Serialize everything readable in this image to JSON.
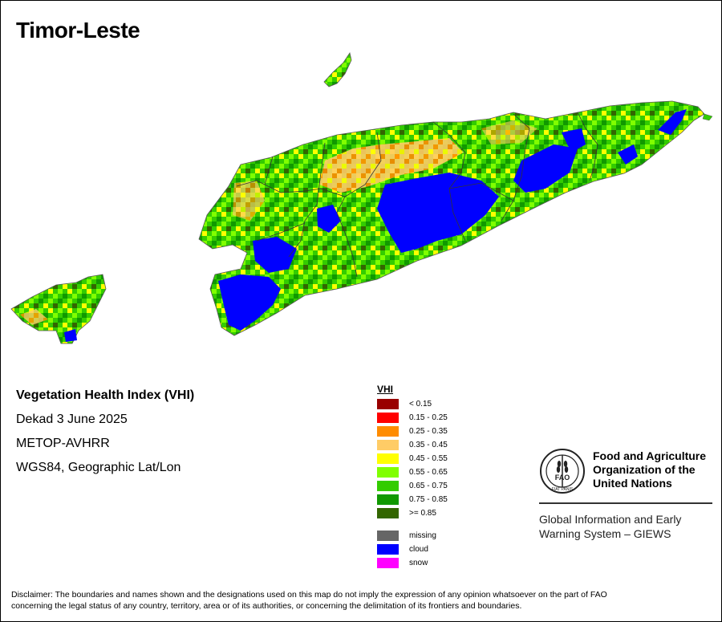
{
  "map": {
    "title": "Timor-Leste",
    "legend_colors": {
      "lt015": "#990000",
      "r015_025": "#ff0000",
      "r025_035": "#ff8c00",
      "r035_045": "#ffcc66",
      "r045_055": "#ffff00",
      "r055_065": "#80ff00",
      "r065_075": "#33cc00",
      "r075_085": "#119900",
      "ge085": "#336600",
      "missing": "#666666",
      "cloud": "#0000ff",
      "snow": "#ff00ff"
    }
  },
  "info": {
    "index_name": "Vegetation Health Index (VHI)",
    "period": "Dekad 3 June 2025",
    "sensor": "METOP-AVHRR",
    "projection": "WGS84, Geographic Lat/Lon"
  },
  "legend": {
    "title": "VHI",
    "classes": [
      {
        "label": "< 0.15",
        "color": "#990000"
      },
      {
        "label": "0.15 - 0.25",
        "color": "#ff0000"
      },
      {
        "label": "0.25 - 0.35",
        "color": "#ff8c00"
      },
      {
        "label": "0.35 - 0.45",
        "color": "#ffcc66"
      },
      {
        "label": "0.45 - 0.55",
        "color": "#ffff00"
      },
      {
        "label": "0.55 - 0.65",
        "color": "#80ff00"
      },
      {
        "label": "0.65 - 0.75",
        "color": "#33cc00"
      },
      {
        "label": "0.75 - 0.85",
        "color": "#119900"
      },
      {
        "label": ">= 0.85",
        "color": "#336600"
      }
    ],
    "other": [
      {
        "label": "missing",
        "color": "#666666"
      },
      {
        "label": "cloud",
        "color": "#0000ff"
      },
      {
        "label": "snow",
        "color": "#ff00ff"
      }
    ]
  },
  "logo": {
    "org_line1": "Food and Agriculture",
    "org_line2": "Organization of the",
    "org_line3": "United Nations",
    "giews_line1": "Global Information and Early",
    "giews_line2": "Warning System – GIEWS",
    "logo_text": "FIAT PANIS",
    "logo_mark": "FAO"
  },
  "disclaimer": {
    "line1": "Disclaimer: The boundaries and names shown and the designations used on this map do not imply the expression of any opinion whatsoever on the part of FAO",
    "line2": "concerning the legal status of any country, territory, area or of its authorities, or concerning the delimitation of its frontiers and boundaries."
  }
}
